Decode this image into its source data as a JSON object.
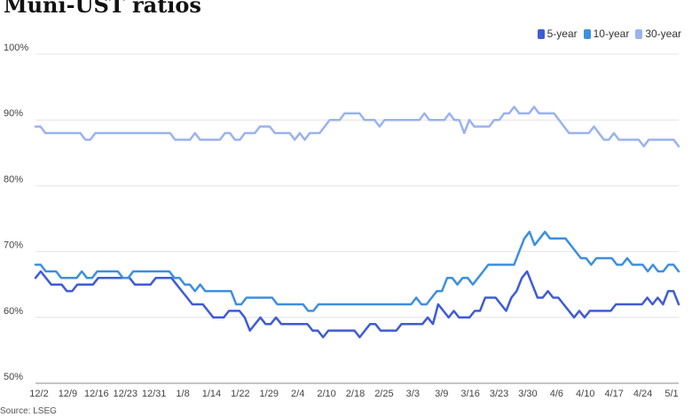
{
  "chart_data": {
    "type": "line",
    "title": "Muni-UST ratios",
    "source": "Source: LSEG",
    "ylim": [
      50,
      100
    ],
    "y_ticks": [
      "100%",
      "90%",
      "80%",
      "70%",
      "60%",
      "50%"
    ],
    "x_tick_labels": [
      "12/2",
      "12/9",
      "12/16",
      "12/23",
      "12/31",
      "1/8",
      "1/14",
      "1/22",
      "1/29",
      "2/4",
      "2/10",
      "2/18",
      "2/25",
      "3/3",
      "3/9",
      "3/16",
      "3/23",
      "3/30",
      "4/6",
      "4/10",
      "4/17",
      "4/24",
      "5/1"
    ],
    "grid": "horizontal",
    "legend_position": "top-right",
    "series": [
      {
        "name": "5-year",
        "color": "#3f5bd6",
        "values": [
          66,
          67,
          66,
          65,
          65,
          65,
          64,
          64,
          65,
          65,
          65,
          65,
          66,
          66,
          66,
          66,
          66,
          66,
          66,
          65,
          65,
          65,
          65,
          66,
          66,
          66,
          66,
          65,
          64,
          63,
          62,
          62,
          62,
          61,
          60,
          60,
          60,
          61,
          61,
          61,
          60,
          58,
          59,
          60,
          59,
          59,
          60,
          59,
          59,
          59,
          59,
          59,
          59,
          58,
          58,
          57,
          58,
          58,
          58,
          58,
          58,
          58,
          57,
          58,
          59,
          59,
          58,
          58,
          58,
          58,
          59,
          59,
          59,
          59,
          59,
          60,
          59,
          62,
          61,
          60,
          61,
          60,
          60,
          60,
          61,
          61,
          63,
          63,
          63,
          62,
          61,
          63,
          64,
          66,
          67,
          65,
          63,
          63,
          64,
          63,
          63,
          62,
          61,
          60,
          61,
          60,
          61,
          61,
          61,
          61,
          61,
          62,
          62,
          62,
          62,
          62,
          62,
          63,
          62,
          63,
          62,
          64,
          64,
          62
        ]
      },
      {
        "name": "10-year",
        "color": "#3d8fe0",
        "values": [
          68,
          68,
          67,
          67,
          67,
          66,
          66,
          66,
          66,
          67,
          66,
          66,
          67,
          67,
          67,
          67,
          67,
          66,
          66,
          67,
          67,
          67,
          67,
          67,
          67,
          67,
          67,
          66,
          66,
          65,
          65,
          64,
          65,
          64,
          64,
          64,
          64,
          64,
          64,
          62,
          62,
          63,
          63,
          63,
          63,
          63,
          63,
          62,
          62,
          62,
          62,
          62,
          62,
          61,
          61,
          62,
          62,
          62,
          62,
          62,
          62,
          62,
          62,
          62,
          62,
          62,
          62,
          62,
          62,
          62,
          62,
          62,
          62,
          62,
          63,
          62,
          62,
          63,
          64,
          64,
          66,
          66,
          65,
          66,
          66,
          65,
          66,
          67,
          68,
          68,
          68,
          68,
          68,
          68,
          70,
          72,
          73,
          71,
          72,
          73,
          72,
          72,
          72,
          72,
          71,
          70,
          69,
          69,
          68,
          69,
          69,
          69,
          69,
          68,
          68,
          69,
          68,
          68,
          68,
          67,
          68,
          67,
          67,
          68,
          68,
          67
        ]
      },
      {
        "name": "30-year",
        "color": "#9ab2ef",
        "values": [
          89,
          89,
          88,
          88,
          88,
          88,
          88,
          88,
          88,
          88,
          87,
          87,
          88,
          88,
          88,
          88,
          88,
          88,
          88,
          88,
          88,
          88,
          88,
          88,
          88,
          88,
          88,
          88,
          87,
          87,
          87,
          87,
          88,
          87,
          87,
          87,
          87,
          87,
          88,
          88,
          87,
          87,
          88,
          88,
          88,
          89,
          89,
          89,
          88,
          88,
          88,
          88,
          87,
          88,
          87,
          88,
          88,
          88,
          89,
          90,
          90,
          90,
          91,
          91,
          91,
          91,
          90,
          90,
          90,
          89,
          90,
          90,
          90,
          90,
          90,
          90,
          90,
          90,
          91,
          90,
          90,
          90,
          90,
          91,
          90,
          90,
          88,
          90,
          89,
          89,
          89,
          89,
          90,
          90,
          91,
          91,
          92,
          91,
          91,
          91,
          92,
          91,
          91,
          91,
          91,
          90,
          89,
          88,
          88,
          88,
          88,
          88,
          89,
          88,
          87,
          87,
          88,
          87,
          87,
          87,
          87,
          87,
          86,
          87,
          87,
          87,
          87,
          87,
          87,
          86
        ]
      }
    ]
  }
}
